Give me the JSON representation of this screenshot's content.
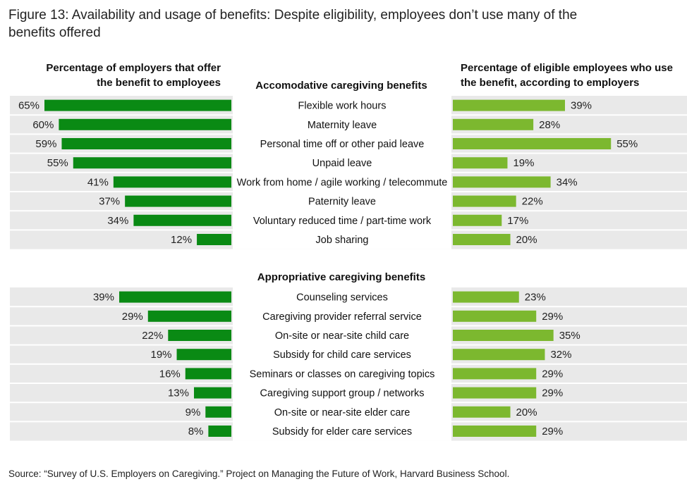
{
  "figure": {
    "title_line1": "Figure 13: Availability and usage of benefits: Despite eligibility, employees don’t use many of the",
    "title_line2": "benefits offered",
    "source": "Source: “Survey of U.S. Employers on Caregiving.” Project on Managing the Future of Work, Harvard Business School."
  },
  "headers": {
    "left_line1": "Percentage of employers that offer",
    "left_line2": "the benefit to employees",
    "right_line1": "Percentage of eligible employees who use",
    "right_line2": "the benefit, according to employers"
  },
  "colors": {
    "left_bar": "#0a8a14",
    "right_bar": "#7cb82f",
    "row_band": "#e9e9e9",
    "row_separator": "#ffffff"
  },
  "chart_data": {
    "type": "bar",
    "orientation": "horizontal-butterfly",
    "value_unit": "%",
    "value_scale_max": 65,
    "groups": [
      {
        "name": "Accomodative caregiving benefits",
        "categories": [
          "Flexible work hours",
          "Maternity leave",
          "Personal time off or other paid leave",
          "Unpaid leave",
          "Work from home / agile working / telecommute",
          "Paternity leave",
          "Voluntary reduced time / part-time work",
          "Job sharing"
        ],
        "series": [
          {
            "name": "Percentage of employers that offer the benefit to employees",
            "values": [
              65,
              60,
              59,
              55,
              41,
              37,
              34,
              12
            ]
          },
          {
            "name": "Percentage of eligible employees who use the benefit, according to employers",
            "values": [
              39,
              28,
              55,
              19,
              34,
              22,
              17,
              20
            ]
          }
        ]
      },
      {
        "name": "Appropriative caregiving benefits",
        "categories": [
          "Counseling services",
          "Caregiving provider referral service",
          "On-site or near-site child care",
          "Subsidy for child care services",
          "Seminars or classes on caregiving topics",
          "Caregiving support group / networks",
          "On-site or near-site elder care",
          "Subsidy for elder care services"
        ],
        "series": [
          {
            "name": "Percentage of employers that offer the benefit to employees",
            "values": [
              39,
              29,
              22,
              19,
              16,
              13,
              9,
              8
            ]
          },
          {
            "name": "Percentage of eligible employees who use the benefit, according to employers",
            "values": [
              23,
              29,
              35,
              32,
              29,
              29,
              20,
              29
            ]
          }
        ]
      }
    ]
  }
}
